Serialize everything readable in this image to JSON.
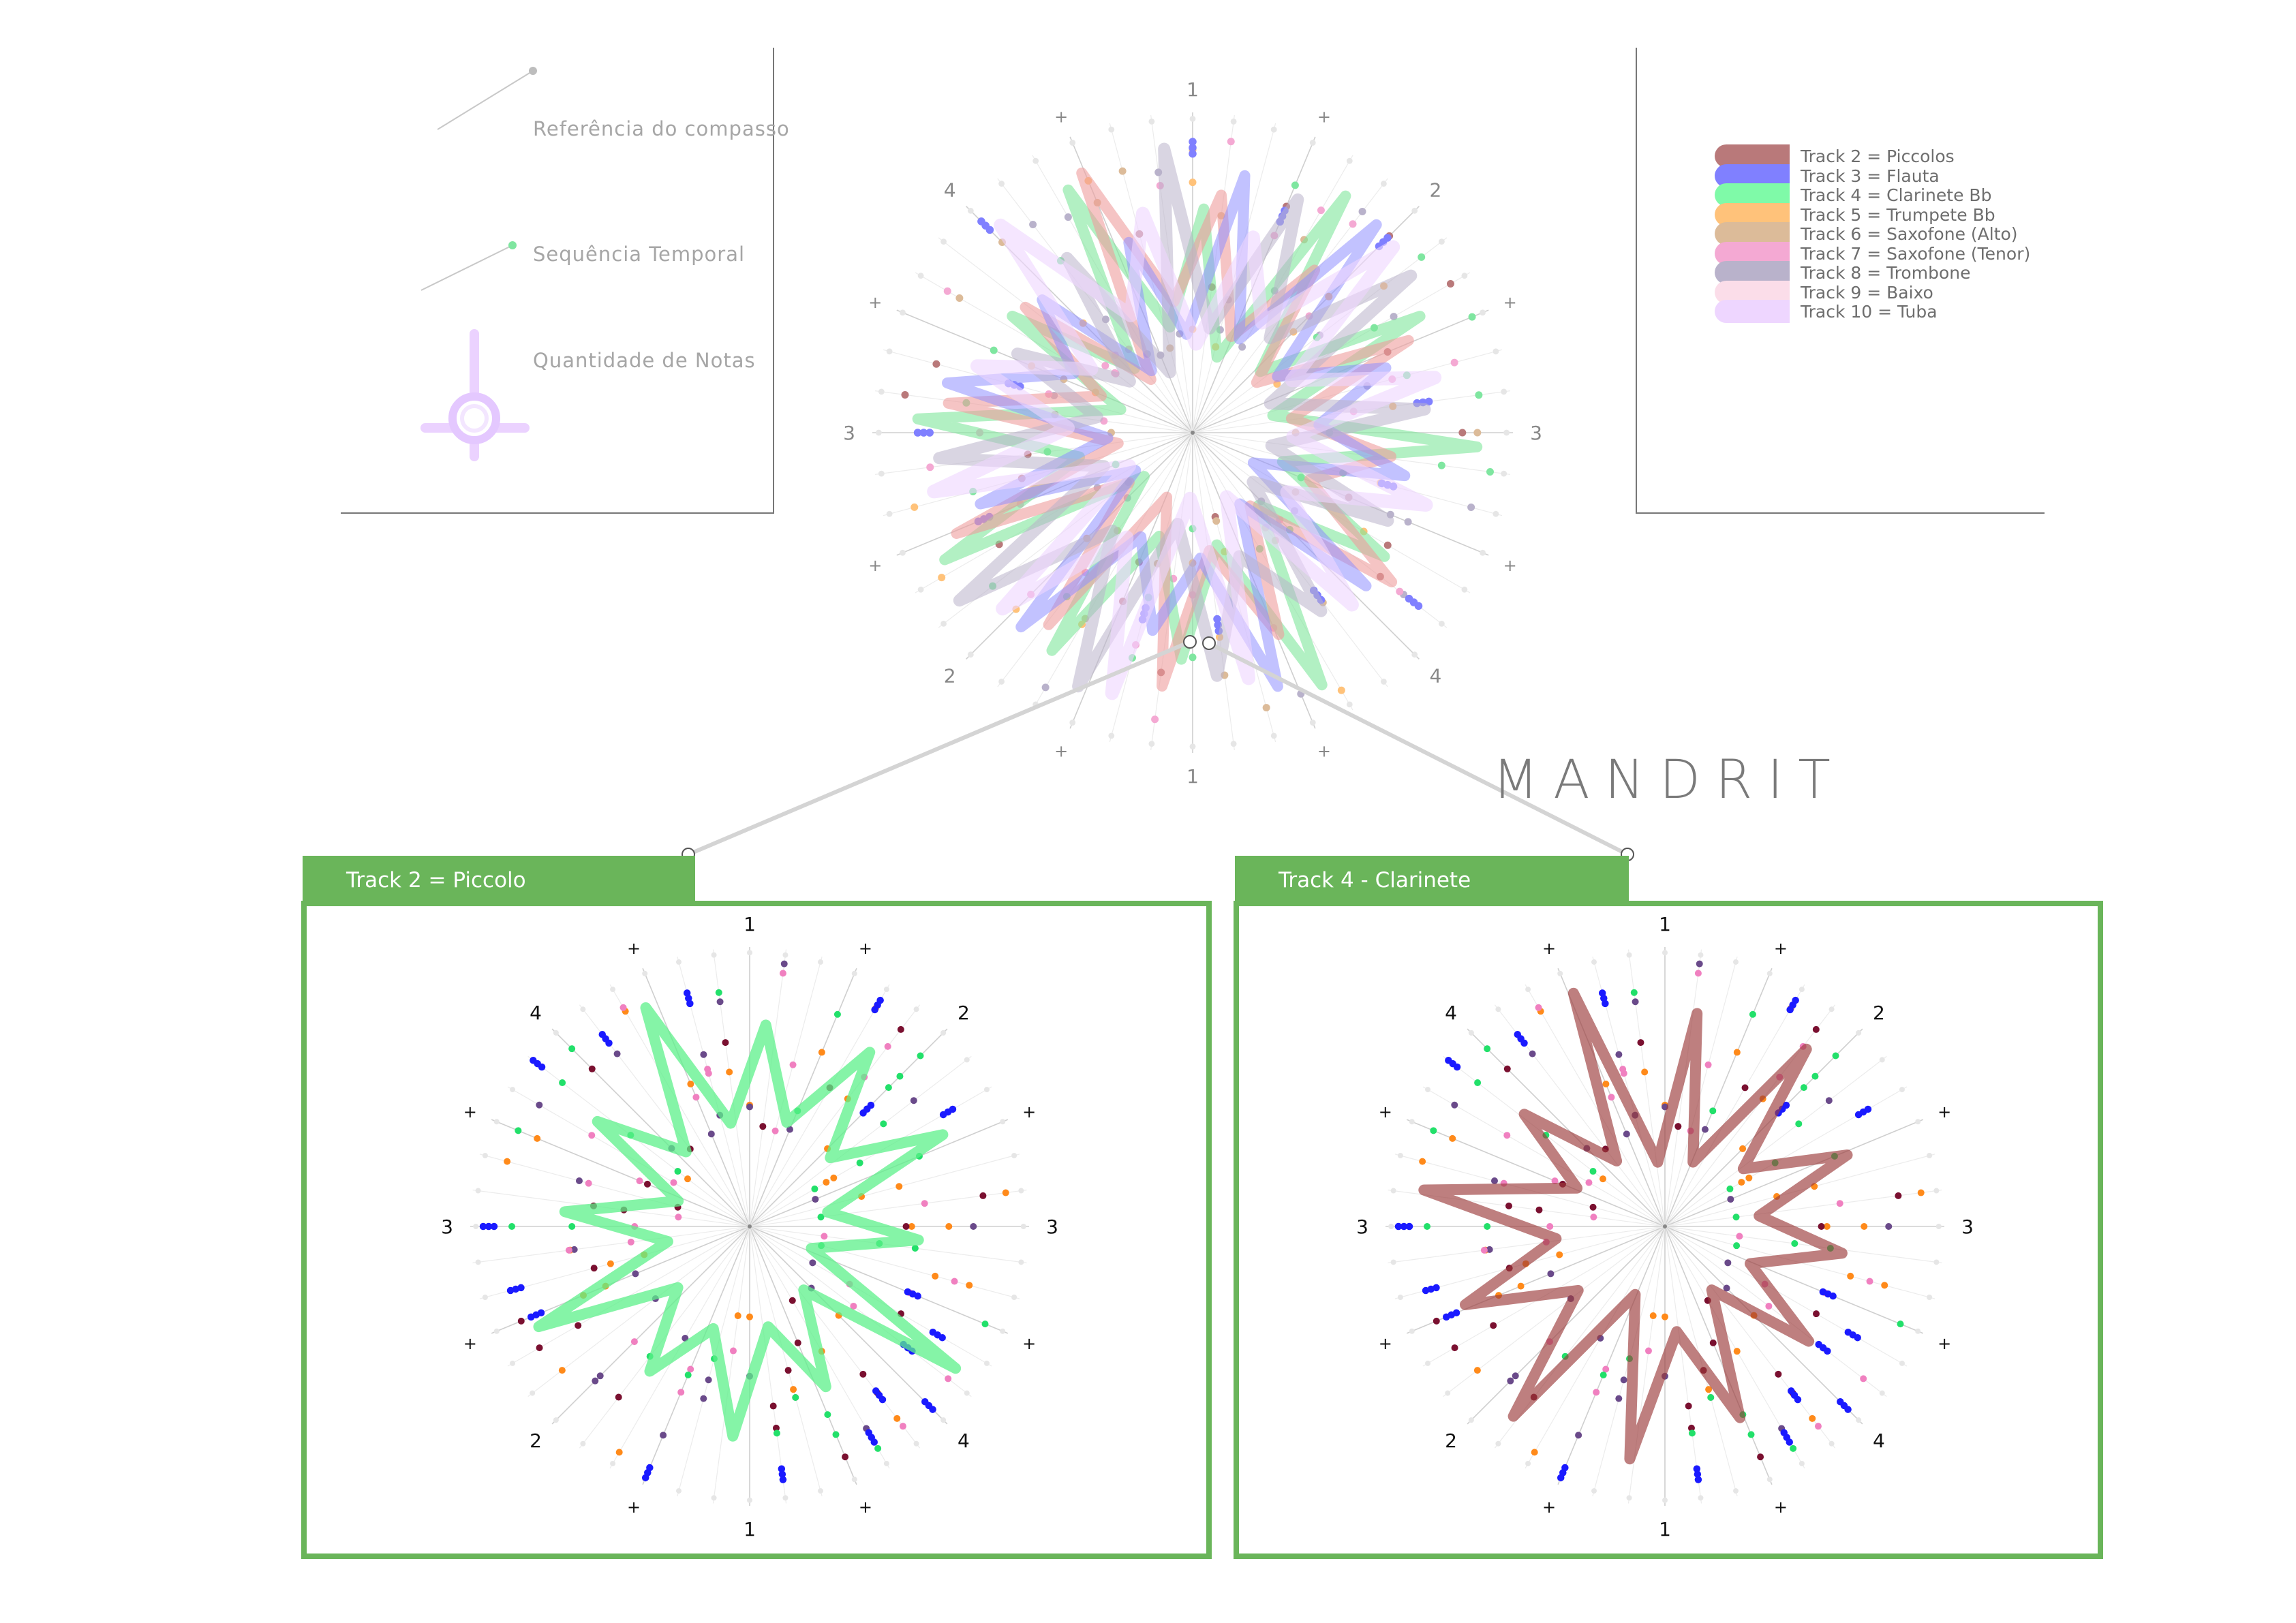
{
  "brand": "MANDRIT",
  "info": {
    "items": [
      {
        "label": "Referência do compasso",
        "icon": "measure-reference-icon"
      },
      {
        "label": "Sequência Temporal",
        "icon": "temporal-sequence-icon"
      },
      {
        "label": "Quantidade de Notas",
        "icon": "note-quantity-icon"
      }
    ]
  },
  "legend": {
    "items": [
      {
        "label": "Track 2 = Piccolos",
        "color": "#b9797a"
      },
      {
        "label": "Track 3 = Flauta",
        "color": "#8080ff"
      },
      {
        "label": "Track 4 = Clarinete Bb",
        "color": "#7ffaa8"
      },
      {
        "label": "Track 5 = Trumpete Bb",
        "color": "#ffc27a"
      },
      {
        "label": "Track 6 =  Saxofone (Alto)",
        "color": "#dcbb99"
      },
      {
        "label": "Track 7 = Saxofone (Tenor)",
        "color": "#f4a9d3"
      },
      {
        "label": "Track 8 = Trombone",
        "color": "#b9b2cb"
      },
      {
        "label": "Track 9 = Baixo",
        "color": "#fbdde9"
      },
      {
        "label": "Track 10 = Tuba",
        "color": "#eed6ff"
      }
    ]
  },
  "radial": {
    "beat_labels": [
      "1",
      "+",
      "2",
      "+",
      "3",
      "+",
      "4",
      "+",
      "1",
      "+",
      "2",
      "+",
      "3",
      "+",
      "4",
      "+"
    ]
  },
  "details": [
    {
      "tab": "Track  2 = Piccolo",
      "accent": "#5cf08a"
    },
    {
      "tab": "Track 4 - Clarinete",
      "accent": "#9b3b3b"
    }
  ],
  "colors": {
    "panel_green": "#6ab55a",
    "dot_blue": "#1a1aff",
    "dot_green": "#22e06a",
    "dot_orange": "#ff8a1a",
    "dot_maroon": "#7a1030",
    "dot_purple": "#6a4a8a",
    "dot_pink": "#f080c0",
    "dot_gray": "#d9d9d9"
  }
}
